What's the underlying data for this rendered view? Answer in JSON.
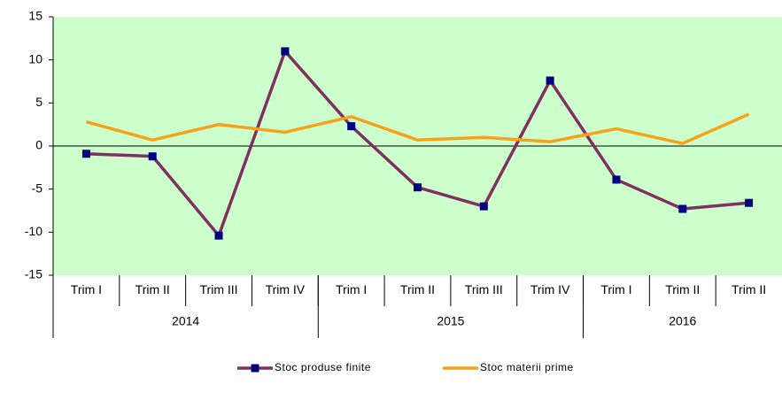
{
  "chart_data": {
    "type": "line",
    "categories": [
      "Trim I",
      "Trim II",
      "Trim III",
      "Trim IV",
      "Trim I",
      "Trim II",
      "Trim III",
      "Trim IV",
      "Trim I",
      "Trim II",
      "Trim II"
    ],
    "groups": [
      {
        "label": "2014",
        "span": 4
      },
      {
        "label": "2015",
        "span": 4
      },
      {
        "label": "2016",
        "span": 3
      }
    ],
    "series": [
      {
        "name": "Stoc produse finite",
        "color": "#7f3060",
        "marker_color": "#000080",
        "values": [
          -0.9,
          -1.2,
          -10.4,
          11.0,
          2.3,
          -4.8,
          -7.0,
          7.6,
          -3.9,
          -7.3,
          -6.6
        ]
      },
      {
        "name": "Stoc materii prime",
        "color": "#f7a11a",
        "values": [
          2.8,
          0.7,
          2.5,
          1.6,
          3.4,
          0.7,
          1.0,
          0.5,
          2.0,
          0.3,
          3.7
        ]
      }
    ],
    "ylim": [
      -15,
      15
    ],
    "yticks": [
      -15,
      -10,
      -5,
      0,
      5,
      10,
      15
    ],
    "plot_color": "#ccffcc",
    "legend": "bottom"
  }
}
